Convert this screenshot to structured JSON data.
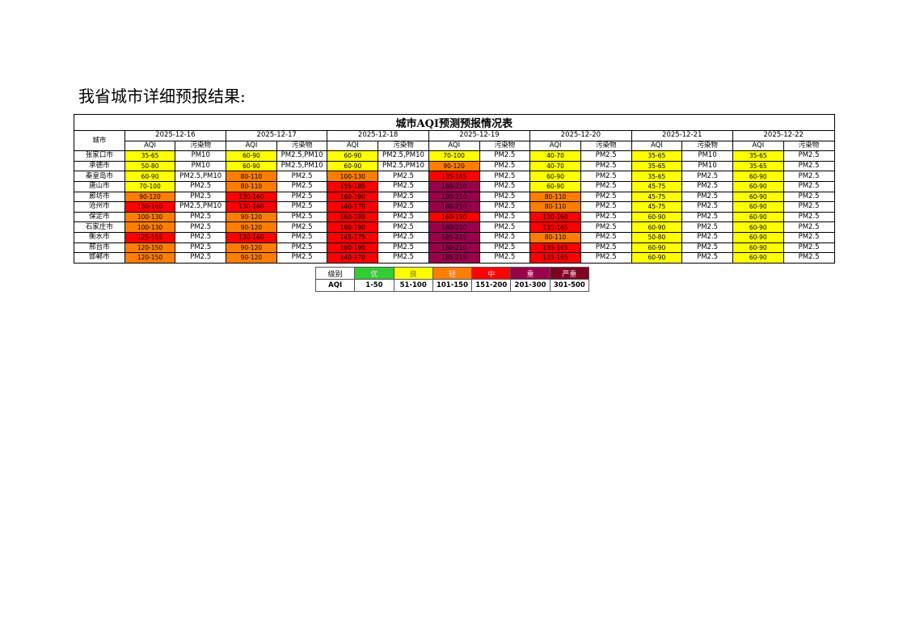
{
  "heading": "我省城市详细预报结果:",
  "table": {
    "title": "城市AQI预测预报情况表",
    "city_header": "城市",
    "dates": [
      "2025-12-16",
      "2025-12-17",
      "2025-12-18",
      "2025-12-19",
      "2025-12-20",
      "2025-12-21",
      "2025-12-22"
    ],
    "sub_headers": [
      "AQI",
      "污染物"
    ],
    "rows": [
      {
        "city": "张家口市",
        "cells": [
          [
            "35-65",
            "PM10"
          ],
          [
            "60-90",
            "PM2.5,PM10"
          ],
          [
            "60-90",
            "PM2.5,PM10"
          ],
          [
            "70-100",
            "PM2.5"
          ],
          [
            "40-70",
            "PM2.5"
          ],
          [
            "35-65",
            "PM10"
          ],
          [
            "35-65",
            "PM2.5"
          ]
        ]
      },
      {
        "city": "承德市",
        "cells": [
          [
            "50-80",
            "PM10"
          ],
          [
            "60-90",
            "PM2.5,PM10"
          ],
          [
            "60-90",
            "PM2.5,PM10"
          ],
          [
            "90-120",
            "PM2.5"
          ],
          [
            "40-70",
            "PM2.5"
          ],
          [
            "35-65",
            "PM10"
          ],
          [
            "35-65",
            "PM2.5"
          ]
        ]
      },
      {
        "city": "秦皇岛市",
        "cells": [
          [
            "60-90",
            "PM2.5,PM10"
          ],
          [
            "80-110",
            "PM2.5"
          ],
          [
            "100-130",
            "PM2.5"
          ],
          [
            "135-165",
            "PM2.5"
          ],
          [
            "60-90",
            "PM2.5"
          ],
          [
            "35-65",
            "PM2.5"
          ],
          [
            "60-90",
            "PM2.5"
          ]
        ]
      },
      {
        "city": "唐山市",
        "cells": [
          [
            "70-100",
            "PM2.5"
          ],
          [
            "80-110",
            "PM2.5"
          ],
          [
            "155-185",
            "PM2.5"
          ],
          [
            "180-210",
            "PM2.5"
          ],
          [
            "60-90",
            "PM2.5"
          ],
          [
            "45-75",
            "PM2.5"
          ],
          [
            "60-90",
            "PM2.5"
          ]
        ]
      },
      {
        "city": "廊坊市",
        "cells": [
          [
            "90-120",
            "PM2.5"
          ],
          [
            "130-160",
            "PM2.5"
          ],
          [
            "160-190",
            "PM2.5"
          ],
          [
            "180-210",
            "PM2.5"
          ],
          [
            "80-110",
            "PM2.5"
          ],
          [
            "45-75",
            "PM2.5"
          ],
          [
            "60-90",
            "PM2.5"
          ]
        ]
      },
      {
        "city": "沧州市",
        "cells": [
          [
            "130-160",
            "PM2.5,PM10"
          ],
          [
            "130-160",
            "PM2.5"
          ],
          [
            "140-170",
            "PM2.5"
          ],
          [
            "180-210",
            "PM2.5"
          ],
          [
            "80-110",
            "PM2.5"
          ],
          [
            "45-75",
            "PM2.5"
          ],
          [
            "60-90",
            "PM2.5"
          ]
        ]
      },
      {
        "city": "保定市",
        "cells": [
          [
            "100-130",
            "PM2.5"
          ],
          [
            "90-120",
            "PM2.5"
          ],
          [
            "160-190",
            "PM2.5"
          ],
          [
            "160-190",
            "PM2.5"
          ],
          [
            "130-160",
            "PM2.5"
          ],
          [
            "60-90",
            "PM2.5"
          ],
          [
            "60-90",
            "PM2.5"
          ]
        ]
      },
      {
        "city": "石家庄市",
        "cells": [
          [
            "100-130",
            "PM2.5"
          ],
          [
            "90-120",
            "PM2.5"
          ],
          [
            "160-190",
            "PM2.5"
          ],
          [
            "180-210",
            "PM2.5"
          ],
          [
            "135-165",
            "PM2.5"
          ],
          [
            "60-90",
            "PM2.5"
          ],
          [
            "60-90",
            "PM2.5"
          ]
        ]
      },
      {
        "city": "衡水市",
        "cells": [
          [
            "125-155",
            "PM2.5"
          ],
          [
            "130-160",
            "PM2.5"
          ],
          [
            "145-175",
            "PM2.5"
          ],
          [
            "185-215",
            "PM2.5"
          ],
          [
            "80-110",
            "PM2.5"
          ],
          [
            "50-80",
            "PM2.5"
          ],
          [
            "60-90",
            "PM2.5"
          ]
        ]
      },
      {
        "city": "邢台市",
        "cells": [
          [
            "120-150",
            "PM2.5"
          ],
          [
            "90-120",
            "PM2.5"
          ],
          [
            "160-190",
            "PM2.5"
          ],
          [
            "180-210",
            "PM2.5"
          ],
          [
            "135-165",
            "PM2.5"
          ],
          [
            "60-90",
            "PM2.5"
          ],
          [
            "60-90",
            "PM2.5"
          ]
        ]
      },
      {
        "city": "邯郸市",
        "cells": [
          [
            "120-150",
            "PM2.5"
          ],
          [
            "90-120",
            "PM2.5"
          ],
          [
            "140-170",
            "PM2.5"
          ],
          [
            "185-215",
            "PM2.5"
          ],
          [
            "135-165",
            "PM2.5"
          ],
          [
            "60-90",
            "PM2.5"
          ],
          [
            "60-90",
            "PM2.5"
          ]
        ]
      }
    ]
  },
  "legend": {
    "header_label": "级别",
    "row_label": "AQI",
    "levels": [
      {
        "name": "优",
        "range": "1-50",
        "color": "#33cc33"
      },
      {
        "name": "良",
        "range": "51-100",
        "color": "#ffff00"
      },
      {
        "name": "轻",
        "range": "101-150",
        "color": "#ff7e00"
      },
      {
        "name": "中",
        "range": "151-200",
        "color": "#ff0000"
      },
      {
        "name": "重",
        "range": "201-300",
        "color": "#99004c"
      },
      {
        "name": "严重",
        "range": "301-500",
        "color": "#7e0023"
      }
    ]
  }
}
